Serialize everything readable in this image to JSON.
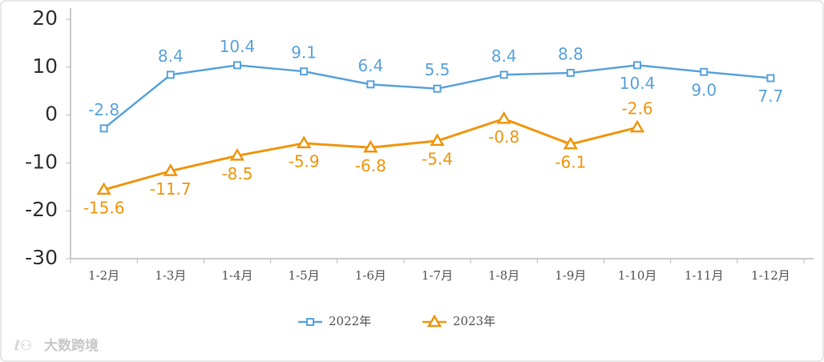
{
  "chart_data": {
    "type": "line",
    "categories": [
      "1-2月",
      "1-3月",
      "1-4月",
      "1-5月",
      "1-6月",
      "1-7月",
      "1-8月",
      "1-9月",
      "1-10月",
      "1-11月",
      "1-12月"
    ],
    "series": [
      {
        "name": "2022年",
        "color": "#5ba3dc",
        "marker": "square",
        "values": [
          -2.8,
          8.4,
          10.4,
          9.1,
          6.4,
          5.5,
          8.4,
          8.8,
          10.4,
          9.0,
          7.7
        ],
        "value_labels": [
          "-2.8",
          "8.4",
          "10.4",
          "9.1",
          "6.4",
          "5.5",
          "8.4",
          "8.8",
          "10.4",
          "9.0",
          "7.7"
        ]
      },
      {
        "name": "2023年",
        "color": "#f0960e",
        "marker": "triangle",
        "values": [
          -15.6,
          -11.7,
          -8.5,
          -5.9,
          -6.8,
          -5.4,
          -0.8,
          -6.1,
          -2.6,
          null,
          null
        ]
      }
    ],
    "ylim": [
      -30,
      20
    ],
    "yticks": [
      -30,
      -20,
      -10,
      0,
      10,
      20
    ],
    "legend": "bottom",
    "watermark": "大数跨境"
  }
}
